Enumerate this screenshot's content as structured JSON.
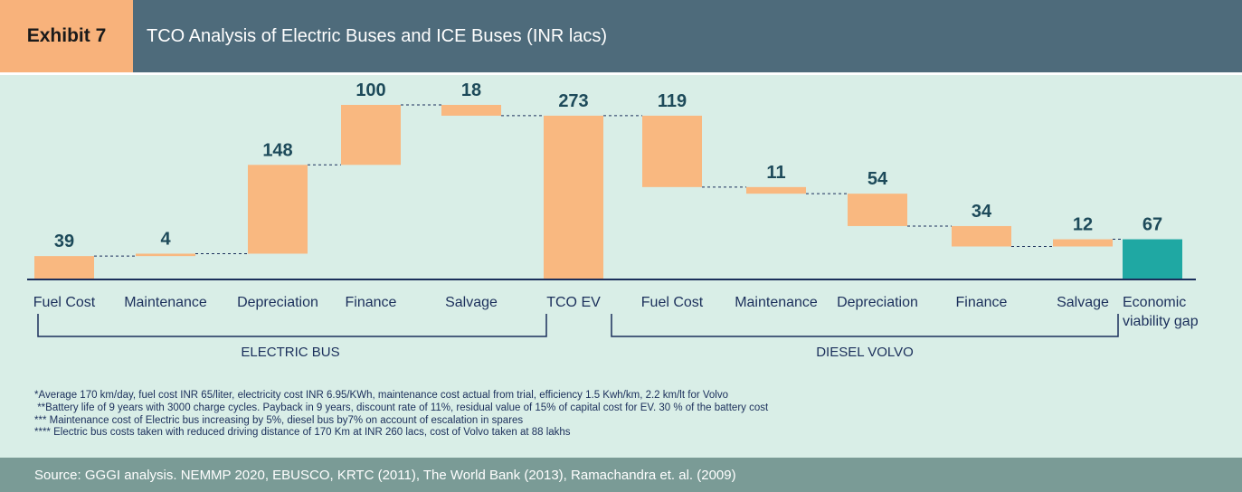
{
  "header": {
    "label": "Exhibit 7",
    "title": "TCO Analysis of Electric Buses and ICE Buses (INR lacs)"
  },
  "chart_data": {
    "type": "waterfall",
    "categories": [
      "Fuel Cost",
      "Maintenance",
      "Depreciation",
      "Finance",
      "Salvage",
      "TCO EV",
      "Fuel Cost",
      "Maintenance",
      "Depreciation",
      "Finance",
      "Salvage",
      "Economic viability gap"
    ],
    "values": [
      39,
      4,
      148,
      100,
      18,
      273,
      119,
      11,
      54,
      34,
      12,
      67
    ],
    "steps": [
      "up",
      "up",
      "up",
      "up",
      "down",
      "total",
      "down",
      "down",
      "down",
      "down",
      "up",
      "total"
    ],
    "colors": [
      "#f9b880",
      "#f9b880",
      "#f9b880",
      "#f9b880",
      "#f9b880",
      "#f9b880",
      "#f9b880",
      "#f9b880",
      "#f9b880",
      "#f9b880",
      "#f9b880",
      "#1fa8a3"
    ],
    "groups": [
      "ELECTRIC BUS",
      "DIESEL VOLVO"
    ],
    "ylim": [
      0,
      300
    ]
  },
  "footnotes": [
    "*Average 170 km/day, fuel cost INR 65/liter, electricity cost INR 6.95/KWh, maintenance cost actual from trial, efficiency 1.5 Kwh/km, 2.2 km/lt for Volvo",
    " **Battery life of 9 years with 3000 charge cycles. Payback in 9 years, discount rate of 11%, residual value of 15% of capital cost for EV. 30 % of the battery cost",
    "*** Maintenance cost of Electric bus increasing by 5%, diesel bus by7% on account of escalation in spares",
    "**** Electric bus costs taken with reduced driving distance of 170 Km at INR 260 lacs, cost of Volvo taken at 88 lakhs"
  ],
  "source": "Source: GGGI analysis. NEMMP 2020, EBUSCO, KRTC (2011), The World Bank (2013), Ramachandra et. al. (2009)"
}
